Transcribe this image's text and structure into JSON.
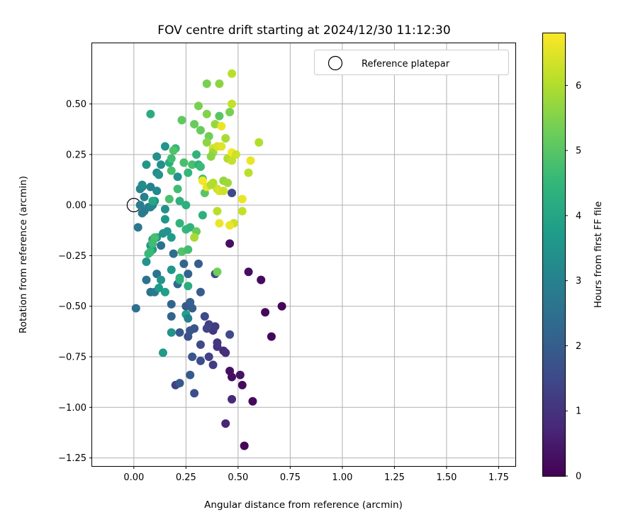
{
  "chart_data": {
    "type": "scatter",
    "title": "FOV centre drift starting at 2024/12/30 11:12:30",
    "xlabel": "Angular distance from reference (arcmin)",
    "ylabel": "Rotation from reference (arcmin)",
    "xlim": [
      -0.2,
      1.83
    ],
    "ylim": [
      -1.29,
      0.8
    ],
    "xticks": [
      0.0,
      0.25,
      0.5,
      0.75,
      1.0,
      1.25,
      1.5,
      1.75
    ],
    "xtick_labels": [
      "0.00",
      "0.25",
      "0.50",
      "0.75",
      "1.00",
      "1.25",
      "1.50",
      "1.75"
    ],
    "yticks": [
      -1.25,
      -1.0,
      -0.75,
      -0.5,
      -0.25,
      0.0,
      0.25,
      0.5
    ],
    "ytick_labels": [
      "−1.25",
      "−1.00",
      "−0.75",
      "−0.50",
      "−0.25",
      "0.00",
      "0.25",
      "0.50"
    ],
    "grid": true,
    "legend": {
      "placement": "top-right",
      "entries": [
        "Reference platepar"
      ]
    },
    "reference_point": {
      "x": 0.0,
      "y": 0.0,
      "marker": "open-circle"
    },
    "colorbar": {
      "label": "Hours from first FF file",
      "range": [
        0,
        6.8
      ],
      "ticks": [
        0,
        1,
        2,
        3,
        4,
        5,
        6
      ],
      "tick_labels": [
        "0",
        "1",
        "2",
        "3",
        "4",
        "5",
        "6"
      ],
      "colormap": "viridis",
      "colormap_stops": [
        "#440154",
        "#482878",
        "#3e4a89",
        "#31688e",
        "#26828e",
        "#1f9e89",
        "#35b779",
        "#6ece58",
        "#b5de2b",
        "#fde725"
      ]
    },
    "points": [
      [
        0.53,
        -1.19,
        0.1
      ],
      [
        0.57,
        -0.97,
        0.15
      ],
      [
        0.52,
        -0.89,
        0.2
      ],
      [
        0.47,
        -0.85,
        0.25
      ],
      [
        0.46,
        -0.82,
        0.3
      ],
      [
        0.51,
        -0.84,
        0.35
      ],
      [
        0.66,
        -0.65,
        0.1
      ],
      [
        0.63,
        -0.53,
        0.15
      ],
      [
        0.71,
        -0.5,
        0.1
      ],
      [
        0.61,
        -0.37,
        0.2
      ],
      [
        0.55,
        -0.33,
        0.25
      ],
      [
        0.46,
        -0.19,
        0.3
      ],
      [
        0.47,
        -0.96,
        0.8
      ],
      [
        0.44,
        -1.08,
        0.7
      ],
      [
        0.43,
        -0.72,
        0.8
      ],
      [
        0.44,
        -0.73,
        0.9
      ],
      [
        0.4,
        -0.7,
        1.0
      ],
      [
        0.4,
        -0.68,
        1.1
      ],
      [
        0.38,
        -0.79,
        1.2
      ],
      [
        0.36,
        -0.75,
        1.3
      ],
      [
        0.38,
        -0.62,
        1.1
      ],
      [
        0.39,
        -0.6,
        1.2
      ],
      [
        0.36,
        -0.59,
        1.3
      ],
      [
        0.35,
        -0.61,
        1.4
      ],
      [
        0.34,
        -0.55,
        1.5
      ],
      [
        0.46,
        -0.64,
        1.5
      ],
      [
        0.32,
        -0.69,
        1.5
      ],
      [
        0.32,
        -0.77,
        1.6
      ],
      [
        0.29,
        -0.93,
        1.6
      ],
      [
        0.26,
        -0.65,
        1.7
      ],
      [
        0.27,
        -0.62,
        1.8
      ],
      [
        0.29,
        -0.61,
        1.8
      ],
      [
        0.28,
        -0.75,
        1.8
      ],
      [
        0.27,
        -0.84,
        1.9
      ],
      [
        0.22,
        -0.63,
        1.9
      ],
      [
        0.2,
        -0.89,
        1.3
      ],
      [
        0.22,
        -0.88,
        1.9
      ],
      [
        0.25,
        -0.5,
        1.9
      ],
      [
        0.28,
        -0.51,
        2.0
      ],
      [
        0.27,
        -0.48,
        2.1
      ],
      [
        0.18,
        -0.49,
        2.2
      ],
      [
        0.18,
        -0.55,
        2.2
      ],
      [
        0.26,
        -0.34,
        2.2
      ],
      [
        0.32,
        -0.43,
        2.0
      ],
      [
        0.31,
        -0.29,
        2.0
      ],
      [
        0.39,
        -0.34,
        1.5
      ],
      [
        0.24,
        -0.29,
        2.2
      ],
      [
        0.21,
        -0.39,
        2.3
      ],
      [
        0.19,
        -0.24,
        2.4
      ],
      [
        0.13,
        -0.2,
        2.5
      ],
      [
        0.11,
        -0.34,
        2.6
      ],
      [
        0.08,
        -0.43,
        2.6
      ],
      [
        0.1,
        -0.43,
        2.8
      ],
      [
        0.06,
        -0.37,
        2.6
      ],
      [
        0.01,
        -0.51,
        2.5
      ],
      [
        0.02,
        -0.11,
        2.7
      ],
      [
        0.04,
        -0.04,
        2.8
      ],
      [
        0.05,
        -0.03,
        2.8
      ],
      [
        0.07,
        -0.01,
        2.9
      ],
      [
        0.03,
        0.0,
        2.9
      ],
      [
        0.08,
        -0.01,
        3.0
      ],
      [
        0.05,
        0.04,
        3.0
      ],
      [
        0.08,
        0.09,
        3.0
      ],
      [
        0.04,
        0.09,
        2.9
      ],
      [
        0.03,
        0.08,
        3.1
      ],
      [
        0.04,
        0.1,
        3.3
      ],
      [
        0.09,
        0.0,
        3.1
      ],
      [
        0.11,
        0.07,
        3.2
      ],
      [
        0.11,
        0.16,
        3.3
      ],
      [
        0.13,
        0.2,
        3.4
      ],
      [
        0.11,
        0.24,
        3.4
      ],
      [
        0.15,
        0.29,
        3.5
      ],
      [
        0.12,
        0.15,
        3.5
      ],
      [
        0.06,
        0.2,
        3.6
      ],
      [
        0.1,
        0.02,
        3.4
      ],
      [
        0.15,
        -0.02,
        3.4
      ],
      [
        0.15,
        -0.07,
        3.6
      ],
      [
        0.14,
        -0.14,
        3.5
      ],
      [
        0.16,
        -0.13,
        3.5
      ],
      [
        0.11,
        -0.16,
        3.5
      ],
      [
        0.09,
        -0.17,
        3.5
      ],
      [
        0.08,
        -0.2,
        3.5
      ],
      [
        0.09,
        -0.22,
        3.6
      ],
      [
        0.06,
        -0.28,
        3.5
      ],
      [
        0.18,
        -0.16,
        3.7
      ],
      [
        0.18,
        -0.32,
        3.6
      ],
      [
        0.12,
        -0.41,
        3.7
      ],
      [
        0.15,
        -0.43,
        3.8
      ],
      [
        0.13,
        -0.37,
        3.5
      ],
      [
        0.22,
        -0.36,
        4.2
      ],
      [
        0.25,
        -0.54,
        3.8
      ],
      [
        0.26,
        -0.56,
        3.0
      ],
      [
        0.18,
        -0.63,
        3.5
      ],
      [
        0.14,
        -0.73,
        3.7
      ],
      [
        0.26,
        -0.4,
        4.2
      ],
      [
        0.22,
        -0.37,
        4.3
      ],
      [
        0.08,
        0.45,
        4.2
      ],
      [
        0.09,
        0.02,
        4.0
      ],
      [
        0.09,
        -0.18,
        4.3
      ],
      [
        0.08,
        -0.23,
        4.5
      ],
      [
        0.1,
        -0.16,
        4.8
      ],
      [
        0.07,
        -0.24,
        4.6
      ],
      [
        0.09,
        -0.19,
        4.7
      ],
      [
        0.17,
        0.21,
        4.2
      ],
      [
        0.21,
        0.14,
        3.5
      ],
      [
        0.2,
        0.28,
        4.5
      ],
      [
        0.19,
        0.27,
        4.9
      ],
      [
        0.18,
        0.23,
        4.7
      ],
      [
        0.18,
        0.17,
        4.8
      ],
      [
        0.21,
        0.08,
        4.7
      ],
      [
        0.22,
        0.02,
        4.3
      ],
      [
        0.25,
        0.0,
        4.3
      ],
      [
        0.17,
        0.03,
        4.8
      ],
      [
        0.22,
        -0.09,
        4.4
      ],
      [
        0.25,
        -0.12,
        4.5
      ],
      [
        0.27,
        -0.11,
        4.4
      ],
      [
        0.26,
        0.16,
        4.5
      ],
      [
        0.24,
        0.21,
        4.8
      ],
      [
        0.28,
        0.2,
        4.8
      ],
      [
        0.3,
        0.25,
        4.4
      ],
      [
        0.31,
        0.2,
        4.3
      ],
      [
        0.32,
        0.19,
        4.6
      ],
      [
        0.33,
        0.13,
        4.8
      ],
      [
        0.34,
        0.06,
        5.0
      ],
      [
        0.33,
        -0.05,
        4.3
      ],
      [
        0.3,
        -0.13,
        5.2
      ],
      [
        0.29,
        -0.16,
        5.9
      ],
      [
        0.23,
        -0.23,
        4.9
      ],
      [
        0.26,
        -0.22,
        4.7
      ],
      [
        0.4,
        -0.33,
        5.3
      ],
      [
        0.23,
        0.42,
        5.1
      ],
      [
        0.29,
        0.4,
        5.2
      ],
      [
        0.32,
        0.37,
        5.2
      ],
      [
        0.31,
        0.49,
        5.4
      ],
      [
        0.35,
        0.45,
        5.5
      ],
      [
        0.41,
        0.44,
        5.0
      ],
      [
        0.35,
        0.6,
        5.4
      ],
      [
        0.41,
        0.6,
        5.6
      ],
      [
        0.47,
        0.65,
        6.1
      ],
      [
        0.47,
        0.5,
        6.2
      ],
      [
        0.46,
        0.46,
        5.4
      ],
      [
        0.39,
        0.4,
        5.7
      ],
      [
        0.42,
        0.39,
        6.6
      ],
      [
        0.36,
        0.34,
        5.3
      ],
      [
        0.35,
        0.31,
        5.6
      ],
      [
        0.38,
        0.28,
        6.3
      ],
      [
        0.38,
        0.26,
        5.8
      ],
      [
        0.37,
        0.24,
        5.6
      ],
      [
        0.4,
        0.29,
        6.4
      ],
      [
        0.42,
        0.29,
        6.5
      ],
      [
        0.44,
        0.33,
        5.9
      ],
      [
        0.45,
        0.23,
        6.0
      ],
      [
        0.47,
        0.26,
        6.7
      ],
      [
        0.47,
        0.22,
        6.2
      ],
      [
        0.49,
        0.25,
        6.3
      ],
      [
        0.38,
        0.11,
        6.0
      ],
      [
        0.4,
        0.08,
        6.3
      ],
      [
        0.41,
        0.07,
        6.4
      ],
      [
        0.43,
        0.12,
        5.7
      ],
      [
        0.45,
        0.11,
        5.8
      ],
      [
        0.43,
        0.07,
        6.3
      ],
      [
        0.33,
        0.12,
        6.7
      ],
      [
        0.35,
        0.09,
        6.6
      ],
      [
        0.37,
        0.1,
        6.0
      ],
      [
        0.47,
        0.06,
        1.5
      ],
      [
        0.4,
        -0.03,
        6.1
      ],
      [
        0.41,
        -0.09,
        6.6
      ],
      [
        0.48,
        -0.09,
        6.3
      ],
      [
        0.52,
        0.03,
        6.6
      ],
      [
        0.52,
        -0.03,
        6.2
      ],
      [
        0.55,
        0.16,
        6.1
      ],
      [
        0.56,
        0.22,
        6.6
      ],
      [
        0.6,
        0.31,
        6.0
      ],
      [
        0.46,
        -0.1,
        6.6
      ]
    ]
  }
}
